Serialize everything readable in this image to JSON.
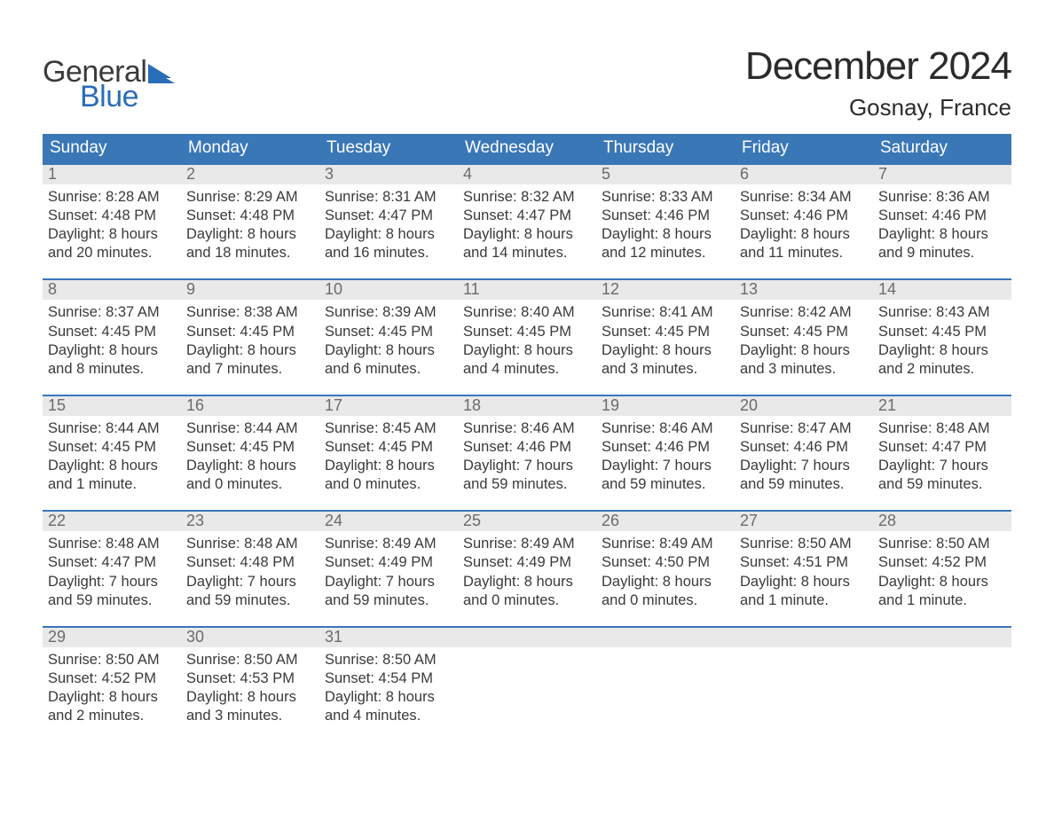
{
  "brand": {
    "line1": "General",
    "line2": "Blue",
    "flag_color": "#2a6db8"
  },
  "title": "December 2024",
  "location": "Gosnay, France",
  "colors": {
    "header_bg": "#3a77b7",
    "header_text": "#ffffff",
    "daynum_bg": "#e9e9e9",
    "daynum_text": "#6b6b6b",
    "week_border": "#3a77b7",
    "body_text": "#3a3a3a",
    "background": "#ffffff"
  },
  "font": {
    "title_size": 44,
    "location_size": 26,
    "header_size": 19,
    "daynum_size": 18,
    "body_size": 16.5
  },
  "day_headers": [
    "Sunday",
    "Monday",
    "Tuesday",
    "Wednesday",
    "Thursday",
    "Friday",
    "Saturday"
  ],
  "weeks": [
    [
      {
        "n": "1",
        "sunrise": "Sunrise: 8:28 AM",
        "sunset": "Sunset: 4:48 PM",
        "dl1": "Daylight: 8 hours",
        "dl2": "and 20 minutes."
      },
      {
        "n": "2",
        "sunrise": "Sunrise: 8:29 AM",
        "sunset": "Sunset: 4:48 PM",
        "dl1": "Daylight: 8 hours",
        "dl2": "and 18 minutes."
      },
      {
        "n": "3",
        "sunrise": "Sunrise: 8:31 AM",
        "sunset": "Sunset: 4:47 PM",
        "dl1": "Daylight: 8 hours",
        "dl2": "and 16 minutes."
      },
      {
        "n": "4",
        "sunrise": "Sunrise: 8:32 AM",
        "sunset": "Sunset: 4:47 PM",
        "dl1": "Daylight: 8 hours",
        "dl2": "and 14 minutes."
      },
      {
        "n": "5",
        "sunrise": "Sunrise: 8:33 AM",
        "sunset": "Sunset: 4:46 PM",
        "dl1": "Daylight: 8 hours",
        "dl2": "and 12 minutes."
      },
      {
        "n": "6",
        "sunrise": "Sunrise: 8:34 AM",
        "sunset": "Sunset: 4:46 PM",
        "dl1": "Daylight: 8 hours",
        "dl2": "and 11 minutes."
      },
      {
        "n": "7",
        "sunrise": "Sunrise: 8:36 AM",
        "sunset": "Sunset: 4:46 PM",
        "dl1": "Daylight: 8 hours",
        "dl2": "and 9 minutes."
      }
    ],
    [
      {
        "n": "8",
        "sunrise": "Sunrise: 8:37 AM",
        "sunset": "Sunset: 4:45 PM",
        "dl1": "Daylight: 8 hours",
        "dl2": "and 8 minutes."
      },
      {
        "n": "9",
        "sunrise": "Sunrise: 8:38 AM",
        "sunset": "Sunset: 4:45 PM",
        "dl1": "Daylight: 8 hours",
        "dl2": "and 7 minutes."
      },
      {
        "n": "10",
        "sunrise": "Sunrise: 8:39 AM",
        "sunset": "Sunset: 4:45 PM",
        "dl1": "Daylight: 8 hours",
        "dl2": "and 6 minutes."
      },
      {
        "n": "11",
        "sunrise": "Sunrise: 8:40 AM",
        "sunset": "Sunset: 4:45 PM",
        "dl1": "Daylight: 8 hours",
        "dl2": "and 4 minutes."
      },
      {
        "n": "12",
        "sunrise": "Sunrise: 8:41 AM",
        "sunset": "Sunset: 4:45 PM",
        "dl1": "Daylight: 8 hours",
        "dl2": "and 3 minutes."
      },
      {
        "n": "13",
        "sunrise": "Sunrise: 8:42 AM",
        "sunset": "Sunset: 4:45 PM",
        "dl1": "Daylight: 8 hours",
        "dl2": "and 3 minutes."
      },
      {
        "n": "14",
        "sunrise": "Sunrise: 8:43 AM",
        "sunset": "Sunset: 4:45 PM",
        "dl1": "Daylight: 8 hours",
        "dl2": "and 2 minutes."
      }
    ],
    [
      {
        "n": "15",
        "sunrise": "Sunrise: 8:44 AM",
        "sunset": "Sunset: 4:45 PM",
        "dl1": "Daylight: 8 hours",
        "dl2": "and 1 minute."
      },
      {
        "n": "16",
        "sunrise": "Sunrise: 8:44 AM",
        "sunset": "Sunset: 4:45 PM",
        "dl1": "Daylight: 8 hours",
        "dl2": "and 0 minutes."
      },
      {
        "n": "17",
        "sunrise": "Sunrise: 8:45 AM",
        "sunset": "Sunset: 4:45 PM",
        "dl1": "Daylight: 8 hours",
        "dl2": "and 0 minutes."
      },
      {
        "n": "18",
        "sunrise": "Sunrise: 8:46 AM",
        "sunset": "Sunset: 4:46 PM",
        "dl1": "Daylight: 7 hours",
        "dl2": "and 59 minutes."
      },
      {
        "n": "19",
        "sunrise": "Sunrise: 8:46 AM",
        "sunset": "Sunset: 4:46 PM",
        "dl1": "Daylight: 7 hours",
        "dl2": "and 59 minutes."
      },
      {
        "n": "20",
        "sunrise": "Sunrise: 8:47 AM",
        "sunset": "Sunset: 4:46 PM",
        "dl1": "Daylight: 7 hours",
        "dl2": "and 59 minutes."
      },
      {
        "n": "21",
        "sunrise": "Sunrise: 8:48 AM",
        "sunset": "Sunset: 4:47 PM",
        "dl1": "Daylight: 7 hours",
        "dl2": "and 59 minutes."
      }
    ],
    [
      {
        "n": "22",
        "sunrise": "Sunrise: 8:48 AM",
        "sunset": "Sunset: 4:47 PM",
        "dl1": "Daylight: 7 hours",
        "dl2": "and 59 minutes."
      },
      {
        "n": "23",
        "sunrise": "Sunrise: 8:48 AM",
        "sunset": "Sunset: 4:48 PM",
        "dl1": "Daylight: 7 hours",
        "dl2": "and 59 minutes."
      },
      {
        "n": "24",
        "sunrise": "Sunrise: 8:49 AM",
        "sunset": "Sunset: 4:49 PM",
        "dl1": "Daylight: 7 hours",
        "dl2": "and 59 minutes."
      },
      {
        "n": "25",
        "sunrise": "Sunrise: 8:49 AM",
        "sunset": "Sunset: 4:49 PM",
        "dl1": "Daylight: 8 hours",
        "dl2": "and 0 minutes."
      },
      {
        "n": "26",
        "sunrise": "Sunrise: 8:49 AM",
        "sunset": "Sunset: 4:50 PM",
        "dl1": "Daylight: 8 hours",
        "dl2": "and 0 minutes."
      },
      {
        "n": "27",
        "sunrise": "Sunrise: 8:50 AM",
        "sunset": "Sunset: 4:51 PM",
        "dl1": "Daylight: 8 hours",
        "dl2": "and 1 minute."
      },
      {
        "n": "28",
        "sunrise": "Sunrise: 8:50 AM",
        "sunset": "Sunset: 4:52 PM",
        "dl1": "Daylight: 8 hours",
        "dl2": "and 1 minute."
      }
    ],
    [
      {
        "n": "29",
        "sunrise": "Sunrise: 8:50 AM",
        "sunset": "Sunset: 4:52 PM",
        "dl1": "Daylight: 8 hours",
        "dl2": "and 2 minutes."
      },
      {
        "n": "30",
        "sunrise": "Sunrise: 8:50 AM",
        "sunset": "Sunset: 4:53 PM",
        "dl1": "Daylight: 8 hours",
        "dl2": "and 3 minutes."
      },
      {
        "n": "31",
        "sunrise": "Sunrise: 8:50 AM",
        "sunset": "Sunset: 4:54 PM",
        "dl1": "Daylight: 8 hours",
        "dl2": "and 4 minutes."
      },
      {
        "empty": true
      },
      {
        "empty": true
      },
      {
        "empty": true
      },
      {
        "empty": true
      }
    ]
  ]
}
